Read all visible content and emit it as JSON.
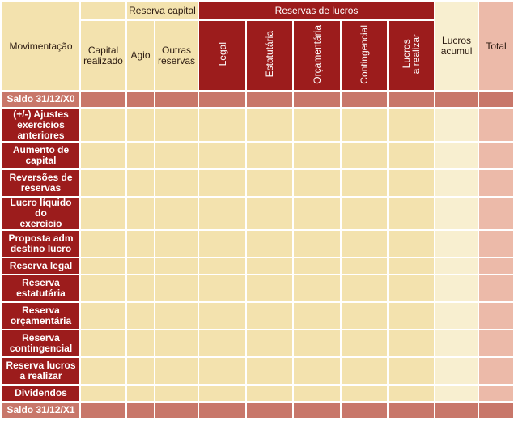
{
  "headers": {
    "movimentacao": "Movimentação",
    "capital_realizado": "Capital\nrealizado",
    "reserva_capital_group": "Reserva capital",
    "agio": "Agio",
    "outras_reservas": "Outras\nreservas",
    "reservas_lucros_group": "Reservas de lucros",
    "legal": "Legal",
    "estatutaria": "Estatutária",
    "orcamentaria": "Orçamentária",
    "contingencial": "Contingencial",
    "lucros_realizar": "Lucros\na realizar",
    "lucros_acumul": "Lucros\nacumul",
    "total": "Total"
  },
  "rows": [
    {
      "label": "Saldo 31/12/X0",
      "saldo": true
    },
    {
      "label": "(+/-) Ajustes\nexercícios\nanteriores"
    },
    {
      "label": "Aumento de\ncapital"
    },
    {
      "label": "Reversões de\nreservas"
    },
    {
      "label": "Lucro líquido do\nexercício"
    },
    {
      "label": "Proposta adm\ndestino lucro"
    },
    {
      "label": "Reserva legal"
    },
    {
      "label": "Reserva\nestatutária"
    },
    {
      "label": "Reserva\norçamentária"
    },
    {
      "label": "Reserva\ncontingencial"
    },
    {
      "label": "Reserva lucros\na realizar"
    },
    {
      "label": "Dividendos"
    },
    {
      "label": "Saldo 31/12/X1",
      "saldo": true
    }
  ],
  "colors": {
    "dark_red": "#9c1c1c",
    "cream": "#f3e2ae",
    "light_cream": "#f8efd0",
    "saldo": "#c8776a",
    "total_pink": "#ecbaa9"
  }
}
